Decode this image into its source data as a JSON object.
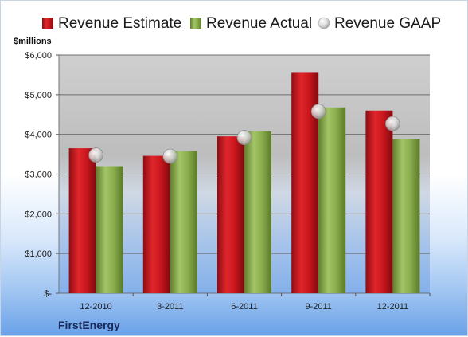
{
  "chart_data": {
    "type": "bar",
    "categories": [
      "12-2010",
      "3-2011",
      "6-2011",
      "9-2011",
      "12-2011"
    ],
    "series": [
      {
        "name": "Revenue Estimate",
        "kind": "bar",
        "color": "#c0141b",
        "values": [
          3650,
          3460,
          3950,
          5550,
          4600
        ]
      },
      {
        "name": "Revenue Actual",
        "kind": "bar",
        "color": "#8caf4e",
        "values": [
          3200,
          3580,
          4080,
          4680,
          3880
        ]
      },
      {
        "name": "Revenue GAAP",
        "kind": "marker",
        "color": "#c8c8c8",
        "values": [
          3480,
          3450,
          3920,
          4580,
          4270
        ]
      }
    ],
    "y_ticks": [
      0,
      1000,
      2000,
      3000,
      4000,
      5000,
      6000
    ],
    "y_tick_labels": [
      "$-",
      "$1,000",
      "$2,000",
      "$3,000",
      "$4,000",
      "$5,000",
      "$6,000"
    ],
    "ylim": [
      0,
      6000
    ],
    "ylabel": "$millions",
    "xlabel": "",
    "grid": true,
    "legend_position": "top"
  },
  "company": "FirstEnergy"
}
